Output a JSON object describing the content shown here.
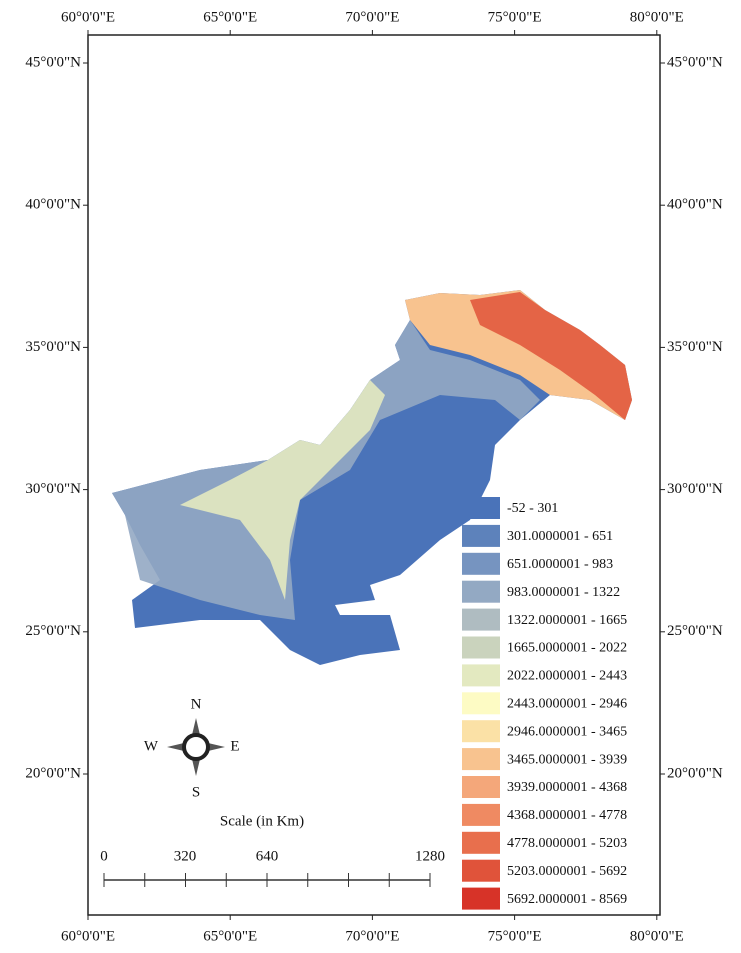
{
  "map": {
    "top_longitudes": [
      "60°0'0\"E",
      "65°0'0\"E",
      "70°0'0\"E",
      "75°0'0\"E",
      "80°0'0\"E"
    ],
    "bottom_longitudes": [
      "60°0'0\"E",
      "65°0'0\"E",
      "70°0'0\"E",
      "75°0'0\"E",
      "80°0'0\"E"
    ],
    "left_latitudes": [
      "45°0'0\"N",
      "40°0'0\"N",
      "35°0'0\"N",
      "30°0'0\"N",
      "25°0'0\"N",
      "20°0'0\"N"
    ],
    "right_latitudes": [
      "45°0'0\"N",
      "40°0'0\"N",
      "35°0'0\"N",
      "30°0'0\"N",
      "25°0'0\"N",
      "20°0'0\"N"
    ],
    "legend": [
      {
        "label": "-52 - 301",
        "color": "#4a73b9"
      },
      {
        "label": "301.0000001 - 651",
        "color": "#5d82bb"
      },
      {
        "label": "651.0000001 - 983",
        "color": "#7694c0"
      },
      {
        "label": "983.0000001 - 1322",
        "color": "#93a9c3"
      },
      {
        "label": "1322.0000001 - 1665",
        "color": "#afbcc1"
      },
      {
        "label": "1665.0000001 - 2022",
        "color": "#cad3bd"
      },
      {
        "label": "2022.0000001 - 2443",
        "color": "#e3e9c0"
      },
      {
        "label": "2443.0000001 - 2946",
        "color": "#fdfbc4"
      },
      {
        "label": "2946.0000001 - 3465",
        "color": "#fbe1a6"
      },
      {
        "label": "3465.0000001 - 3939",
        "color": "#f8c38f"
      },
      {
        "label": "3939.0000001 - 4368",
        "color": "#f4a77a"
      },
      {
        "label": "4368.0000001 - 4778",
        "color": "#ef8a62"
      },
      {
        "label": "4778.0000001 - 5203",
        "color": "#e86f4d"
      },
      {
        "label": "5203.0000001 - 5692",
        "color": "#e0533a"
      },
      {
        "label": "5692.0000001 - 8569",
        "color": "#d73328"
      }
    ],
    "compass": {
      "north": "N",
      "south": "S",
      "west": "W",
      "east": "E"
    },
    "scale": {
      "title": "Scale (in Km)",
      "labels": [
        "0",
        "320",
        "640",
        "1280"
      ]
    }
  }
}
